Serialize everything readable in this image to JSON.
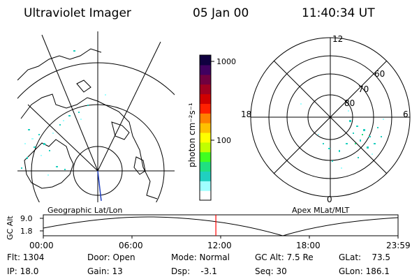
{
  "header": {
    "title": "Ultraviolet Imager",
    "date": "05 Jan 00",
    "time": "11:40:34 UT"
  },
  "map_panel": {
    "caption": "Geographic Lat/Lon"
  },
  "colorbar": {
    "unit_label": "photon cm⁻²s⁻¹",
    "ticks": [
      "1000",
      "100"
    ],
    "colors": [
      "#ffffff",
      "#a0ffff",
      "#20d0c0",
      "#20e080",
      "#40ff20",
      "#c0ff00",
      "#ffff00",
      "#ffc000",
      "#ff8000",
      "#ff2000",
      "#d00000",
      "#a00020",
      "#700040",
      "#400060",
      "#100040"
    ]
  },
  "polar_panel": {
    "caption": "Apex MLat/MLT",
    "mlt_labels": {
      "top": "12",
      "left": "18",
      "right": "6",
      "bottom": "0"
    },
    "lat_labels": [
      "60",
      "70",
      "80"
    ]
  },
  "timeline": {
    "ylabel": "GC Alt",
    "y_ticks": [
      "9.0",
      "1.8"
    ],
    "x_ticks": [
      "00:00",
      "06:00",
      "12:00",
      "18:00",
      "23:59"
    ],
    "marker_color": "#ff0000",
    "marker_time_hours": 11.676
  },
  "info": {
    "flt": "Flt: 1304",
    "ip": "IP: 18.0",
    "door": "Door: Open",
    "gain": "Gain: 13",
    "mode": "Mode: Normal",
    "dsp": "Dsp:    -3.1",
    "gcalt": "GC Alt: 7.5 Re",
    "seq": "Seq: 30",
    "glat": "GLat:    73.5",
    "glon": "GLon: 186.1"
  }
}
